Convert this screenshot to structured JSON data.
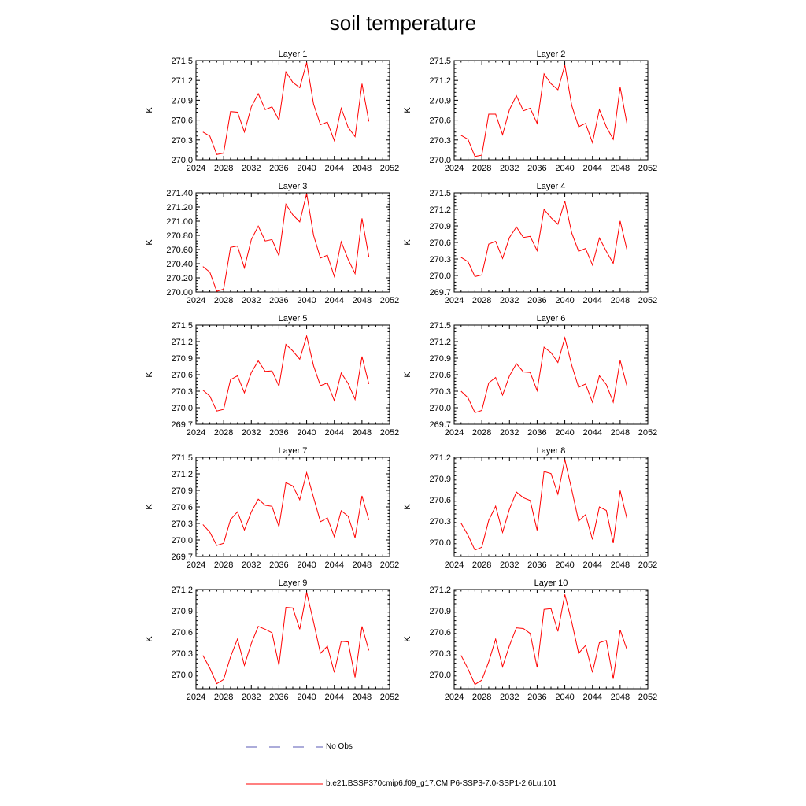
{
  "title": "soil temperature",
  "chart_data": [
    {
      "type": "line",
      "title": "Layer 1",
      "xlabel": "",
      "ylabel": "K",
      "xlim": [
        2024,
        2052
      ],
      "ylim": [
        270.0,
        271.5
      ],
      "yticks": [
        "270.0",
        "270.3",
        "270.6",
        "270.9",
        "271.2",
        "271.5"
      ],
      "xticks": [
        "2024",
        "2028",
        "2032",
        "2036",
        "2040",
        "2044",
        "2048",
        "2052"
      ],
      "x": [
        2025,
        2026,
        2027,
        2028,
        2029,
        2030,
        2031,
        2032,
        2033,
        2034,
        2035,
        2036,
        2037,
        2038,
        2039,
        2040,
        2041,
        2042,
        2043,
        2044,
        2045,
        2046,
        2047,
        2048,
        2049
      ],
      "series": [
        {
          "values": [
            270.42,
            270.36,
            270.08,
            270.1,
            270.73,
            270.72,
            270.42,
            270.8,
            271.0,
            270.76,
            270.8,
            270.6,
            271.33,
            271.17,
            271.09,
            271.47,
            270.84,
            270.53,
            270.57,
            270.29,
            270.78,
            270.49,
            270.35,
            271.15,
            270.58
          ]
        }
      ]
    },
    {
      "type": "line",
      "title": "Layer 2",
      "xlabel": "",
      "ylabel": "K",
      "xlim": [
        2024,
        2052
      ],
      "ylim": [
        270.0,
        271.5
      ],
      "yticks": [
        "270.0",
        "270.3",
        "270.6",
        "270.9",
        "271.2",
        "271.5"
      ],
      "xticks": [
        "2024",
        "2028",
        "2032",
        "2036",
        "2040",
        "2044",
        "2048",
        "2052"
      ],
      "x": [
        2025,
        2026,
        2027,
        2028,
        2029,
        2030,
        2031,
        2032,
        2033,
        2034,
        2035,
        2036,
        2037,
        2038,
        2039,
        2040,
        2041,
        2042,
        2043,
        2044,
        2045,
        2046,
        2047,
        2048,
        2049
      ],
      "series": [
        {
          "values": [
            270.37,
            270.31,
            270.05,
            270.07,
            270.69,
            270.69,
            270.38,
            270.76,
            270.97,
            270.74,
            270.78,
            270.55,
            271.3,
            271.15,
            271.06,
            271.43,
            270.82,
            270.5,
            270.55,
            270.26,
            270.76,
            270.5,
            270.31,
            271.1,
            270.54
          ]
        }
      ]
    },
    {
      "type": "line",
      "title": "Layer 3",
      "xlabel": "",
      "ylabel": "K",
      "xlim": [
        2024,
        2052
      ],
      "ylim": [
        270.0,
        271.4
      ],
      "yticks": [
        "270.00",
        "270.20",
        "270.40",
        "270.60",
        "270.80",
        "271.00",
        "271.20",
        "271.40"
      ],
      "xticks": [
        "2024",
        "2028",
        "2032",
        "2036",
        "2040",
        "2044",
        "2048",
        "2052"
      ],
      "x": [
        2025,
        2026,
        2027,
        2028,
        2029,
        2030,
        2031,
        2032,
        2033,
        2034,
        2035,
        2036,
        2037,
        2038,
        2039,
        2040,
        2041,
        2042,
        2043,
        2044,
        2045,
        2046,
        2047,
        2048,
        2049
      ],
      "series": [
        {
          "values": [
            270.36,
            270.28,
            270.01,
            270.04,
            270.63,
            270.65,
            270.34,
            270.74,
            270.93,
            270.72,
            270.74,
            270.51,
            271.24,
            271.09,
            270.99,
            271.39,
            270.8,
            270.48,
            270.52,
            270.22,
            270.71,
            270.46,
            270.26,
            271.04,
            270.5
          ]
        }
      ]
    },
    {
      "type": "line",
      "title": "Layer 4",
      "xlabel": "",
      "ylabel": "K",
      "xlim": [
        2024,
        2052
      ],
      "ylim": [
        269.7,
        271.5
      ],
      "yticks": [
        "269.7",
        "270.0",
        "270.3",
        "270.6",
        "270.9",
        "271.2",
        "271.5"
      ],
      "xticks": [
        "2024",
        "2028",
        "2032",
        "2036",
        "2040",
        "2044",
        "2048",
        "2052"
      ],
      "x": [
        2025,
        2026,
        2027,
        2028,
        2029,
        2030,
        2031,
        2032,
        2033,
        2034,
        2035,
        2036,
        2037,
        2038,
        2039,
        2040,
        2041,
        2042,
        2043,
        2044,
        2045,
        2046,
        2047,
        2048,
        2049
      ],
      "series": [
        {
          "values": [
            270.33,
            270.25,
            269.98,
            270.01,
            270.57,
            270.62,
            270.31,
            270.69,
            270.88,
            270.69,
            270.71,
            270.45,
            271.2,
            271.05,
            270.93,
            271.35,
            270.77,
            270.44,
            270.49,
            270.19,
            270.68,
            270.44,
            270.22,
            270.99,
            270.46
          ]
        }
      ]
    },
    {
      "type": "line",
      "title": "Layer 5",
      "xlabel": "",
      "ylabel": "K",
      "xlim": [
        2024,
        2052
      ],
      "ylim": [
        269.7,
        271.5
      ],
      "yticks": [
        "269.7",
        "270.0",
        "270.3",
        "270.6",
        "270.9",
        "271.2",
        "271.5"
      ],
      "xticks": [
        "2024",
        "2028",
        "2032",
        "2036",
        "2040",
        "2044",
        "2048",
        "2052"
      ],
      "x": [
        2025,
        2026,
        2027,
        2028,
        2029,
        2030,
        2031,
        2032,
        2033,
        2034,
        2035,
        2036,
        2037,
        2038,
        2039,
        2040,
        2041,
        2042,
        2043,
        2044,
        2045,
        2046,
        2047,
        2048,
        2049
      ],
      "series": [
        {
          "values": [
            270.32,
            270.21,
            269.94,
            269.97,
            270.51,
            270.58,
            270.27,
            270.64,
            270.85,
            270.66,
            270.67,
            270.39,
            271.15,
            271.03,
            270.88,
            271.3,
            270.76,
            270.4,
            270.45,
            270.13,
            270.63,
            270.44,
            270.15,
            270.93,
            270.43
          ]
        }
      ]
    },
    {
      "type": "line",
      "title": "Layer 6",
      "xlabel": "",
      "ylabel": "K",
      "xlim": [
        2024,
        2052
      ],
      "ylim": [
        269.7,
        271.5
      ],
      "yticks": [
        "269.7",
        "270.0",
        "270.3",
        "270.6",
        "270.9",
        "271.2",
        "271.5"
      ],
      "xticks": [
        "2024",
        "2028",
        "2032",
        "2036",
        "2040",
        "2044",
        "2048",
        "2052"
      ],
      "x": [
        2025,
        2026,
        2027,
        2028,
        2029,
        2030,
        2031,
        2032,
        2033,
        2034,
        2035,
        2036,
        2037,
        2038,
        2039,
        2040,
        2041,
        2042,
        2043,
        2044,
        2045,
        2046,
        2047,
        2048,
        2049
      ],
      "series": [
        {
          "values": [
            270.3,
            270.18,
            269.91,
            269.95,
            270.45,
            270.55,
            270.23,
            270.58,
            270.8,
            270.65,
            270.64,
            270.31,
            271.1,
            271.0,
            270.82,
            271.27,
            270.77,
            270.37,
            270.43,
            270.1,
            270.58,
            270.42,
            270.1,
            270.86,
            270.39
          ]
        }
      ]
    },
    {
      "type": "line",
      "title": "Layer 7",
      "xlabel": "",
      "ylabel": "K",
      "xlim": [
        2024,
        2052
      ],
      "ylim": [
        269.7,
        271.5
      ],
      "yticks": [
        "269.7",
        "270.0",
        "270.3",
        "270.6",
        "270.9",
        "271.2",
        "271.5"
      ],
      "xticks": [
        "2024",
        "2028",
        "2032",
        "2036",
        "2040",
        "2044",
        "2048",
        "2052"
      ],
      "x": [
        2025,
        2026,
        2027,
        2028,
        2029,
        2030,
        2031,
        2032,
        2033,
        2034,
        2035,
        2036,
        2037,
        2038,
        2039,
        2040,
        2041,
        2042,
        2043,
        2044,
        2045,
        2046,
        2047,
        2048,
        2049
      ],
      "series": [
        {
          "values": [
            270.28,
            270.14,
            269.9,
            269.94,
            270.37,
            270.51,
            270.18,
            270.51,
            270.74,
            270.63,
            270.61,
            270.24,
            271.04,
            270.98,
            270.73,
            271.22,
            270.77,
            270.33,
            270.4,
            270.06,
            270.53,
            270.43,
            270.04,
            270.8,
            270.36
          ]
        }
      ]
    },
    {
      "type": "line",
      "title": "Layer 8",
      "xlabel": "",
      "ylabel": "K",
      "xlim": [
        2024,
        2052
      ],
      "ylim": [
        269.8,
        271.2
      ],
      "yticks": [
        "270.0",
        "270.3",
        "270.6",
        "270.9",
        "271.2"
      ],
      "xticks": [
        "2024",
        "2028",
        "2032",
        "2036",
        "2040",
        "2044",
        "2048",
        "2052"
      ],
      "x": [
        2025,
        2026,
        2027,
        2028,
        2029,
        2030,
        2031,
        2032,
        2033,
        2034,
        2035,
        2036,
        2037,
        2038,
        2039,
        2040,
        2041,
        2042,
        2043,
        2044,
        2045,
        2046,
        2047,
        2048,
        2049
      ],
      "series": [
        {
          "values": [
            270.27,
            270.1,
            269.89,
            269.93,
            270.31,
            270.51,
            270.14,
            270.47,
            270.71,
            270.63,
            270.59,
            270.17,
            271.0,
            270.97,
            270.68,
            271.17,
            270.74,
            270.3,
            270.39,
            270.04,
            270.5,
            270.45,
            269.99,
            270.73,
            270.33
          ]
        }
      ]
    },
    {
      "type": "line",
      "title": "Layer 9",
      "xlabel": "",
      "ylabel": "K",
      "xlim": [
        2024,
        2052
      ],
      "ylim": [
        269.8,
        271.2
      ],
      "yticks": [
        "270.0",
        "270.3",
        "270.6",
        "270.9",
        "271.2"
      ],
      "xticks": [
        "2024",
        "2028",
        "2032",
        "2036",
        "2040",
        "2044",
        "2048",
        "2052"
      ],
      "x": [
        2025,
        2026,
        2027,
        2028,
        2029,
        2030,
        2031,
        2032,
        2033,
        2034,
        2035,
        2036,
        2037,
        2038,
        2039,
        2040,
        2041,
        2042,
        2043,
        2044,
        2045,
        2046,
        2047,
        2048,
        2049
      ],
      "series": [
        {
          "values": [
            270.27,
            270.09,
            269.87,
            269.93,
            270.25,
            270.5,
            270.13,
            270.44,
            270.68,
            270.64,
            270.59,
            270.13,
            270.95,
            270.94,
            270.64,
            271.16,
            270.74,
            270.3,
            270.4,
            270.03,
            270.47,
            270.46,
            269.96,
            270.68,
            270.34
          ]
        }
      ]
    },
    {
      "type": "line",
      "title": "Layer 10",
      "xlabel": "",
      "ylabel": "K",
      "xlim": [
        2024,
        2052
      ],
      "ylim": [
        269.8,
        271.2
      ],
      "yticks": [
        "270.0",
        "270.3",
        "270.6",
        "270.9",
        "271.2"
      ],
      "xticks": [
        "2024",
        "2028",
        "2032",
        "2036",
        "2040",
        "2044",
        "2048",
        "2052"
      ],
      "x": [
        2025,
        2026,
        2027,
        2028,
        2029,
        2030,
        2031,
        2032,
        2033,
        2034,
        2035,
        2036,
        2037,
        2038,
        2039,
        2040,
        2041,
        2042,
        2043,
        2044,
        2045,
        2046,
        2047,
        2048,
        2049
      ],
      "series": [
        {
          "values": [
            270.27,
            270.08,
            269.86,
            269.92,
            270.18,
            270.5,
            270.11,
            270.41,
            270.66,
            270.65,
            270.58,
            270.1,
            270.92,
            270.93,
            270.61,
            271.13,
            270.74,
            270.3,
            270.41,
            270.03,
            270.45,
            270.48,
            269.94,
            270.63,
            270.35
          ]
        }
      ]
    }
  ],
  "legend": {
    "entries": [
      {
        "label": "No Obs",
        "color": "#5a5ab4",
        "style": "dashed"
      },
      {
        "label": "b.e21.BSSP370cmip6.f09_g17.CMIP6-SSP3-7.0-SSP1-2.6Lu.101",
        "color": "#ff0000",
        "style": "solid"
      }
    ]
  },
  "colors": {
    "series": "#ff0000",
    "axes": "#000000"
  }
}
